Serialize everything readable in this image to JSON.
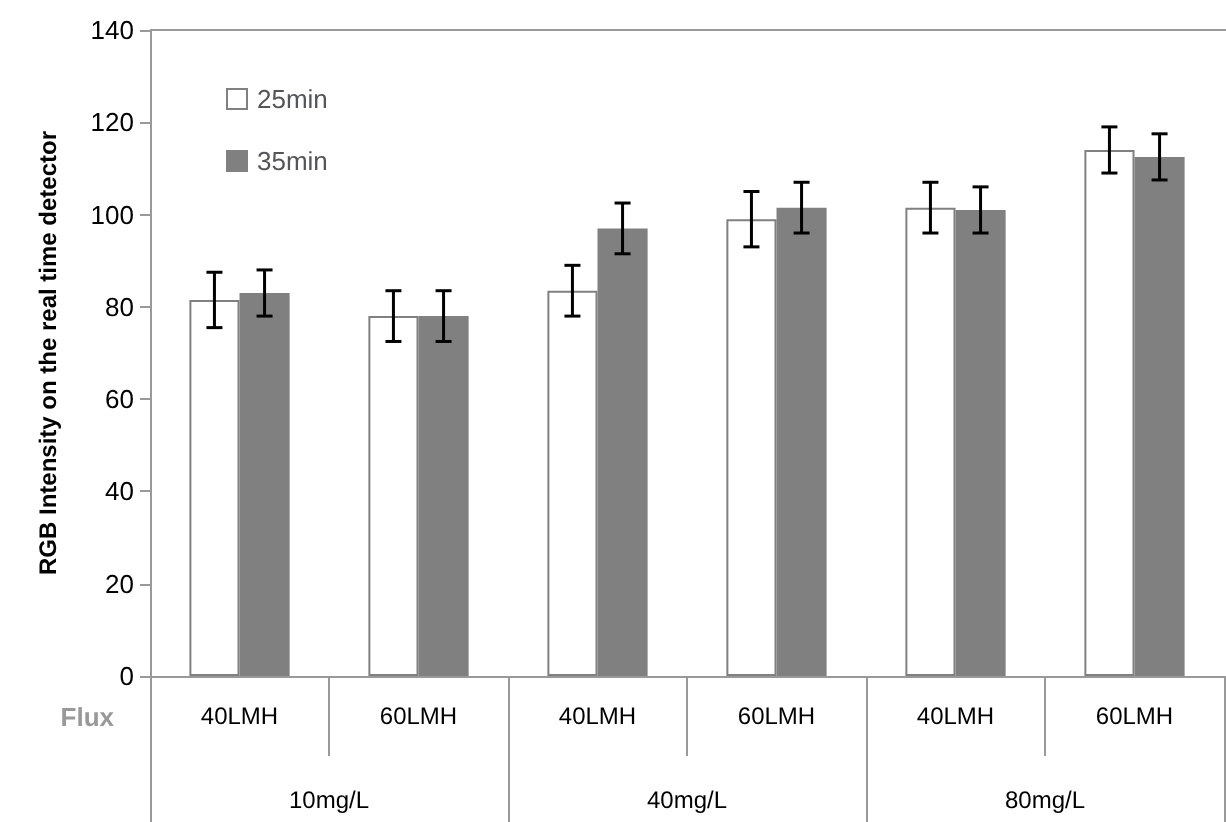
{
  "chart_data": {
    "type": "bar",
    "ylabel": "RGB Intensity on the real time detector",
    "xlabel": "Flux",
    "categories": [
      "40LMH",
      "60LMH",
      "40LMH",
      "60LMH",
      "40LMH",
      "60LMH"
    ],
    "annotations": [
      "10mg/L",
      "40mg/L",
      "80mg/L"
    ],
    "series": [
      {
        "name": "25min",
        "color": "#ffffff",
        "values": [
          81.5,
          78,
          83.5,
          99,
          101.5,
          114
        ],
        "errors": [
          6,
          5.5,
          5.5,
          6,
          5.5,
          5
        ]
      },
      {
        "name": "35min",
        "color": "#808080",
        "values": [
          83,
          78,
          97,
          101.5,
          101,
          112.5
        ],
        "errors": [
          5,
          5.5,
          5.5,
          5.5,
          5,
          5
        ]
      }
    ],
    "ylim": [
      0,
      140
    ],
    "yticks": [
      0,
      20,
      40,
      60,
      80,
      100,
      120,
      140
    ],
    "grid": false,
    "legend": "top left"
  }
}
